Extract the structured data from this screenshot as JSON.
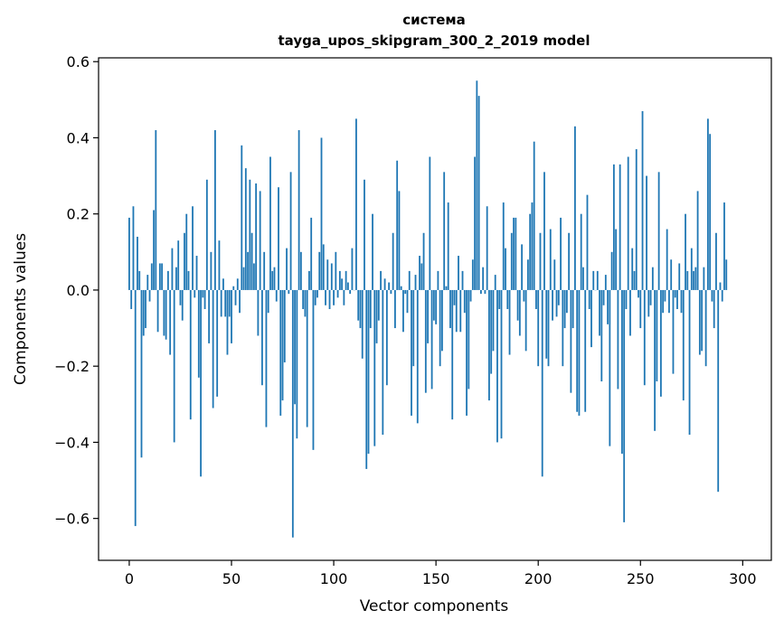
{
  "chart_data": {
    "type": "bar",
    "title": "система",
    "subtitle": "tayga_upos_skipgram_300_2_2019 model",
    "xlabel": "Vector components",
    "ylabel": "Components values",
    "xlim": [
      -15,
      314
    ],
    "ylim": [
      -0.71,
      0.61
    ],
    "xticks": [
      0,
      50,
      100,
      150,
      200,
      250,
      300
    ],
    "yticks": [
      -0.6,
      -0.4,
      -0.2,
      0.0,
      0.2,
      0.4,
      0.6
    ],
    "xtick_labels": [
      "0",
      "50",
      "100",
      "150",
      "200",
      "250",
      "300"
    ],
    "ytick_labels": [
      "−0.6",
      "−0.4",
      "−0.2",
      "0.0",
      "0.2",
      "0.4",
      "0.6"
    ],
    "grid": false,
    "color": "#1f77b4",
    "values": [
      0.19,
      -0.05,
      0.22,
      -0.62,
      0.14,
      0.05,
      -0.44,
      -0.12,
      -0.1,
      0.04,
      -0.03,
      0.07,
      0.21,
      0.42,
      -0.11,
      0.07,
      0.07,
      -0.12,
      -0.13,
      0.05,
      -0.17,
      0.11,
      -0.4,
      0.06,
      0.13,
      -0.04,
      -0.08,
      0.15,
      0.2,
      0.05,
      -0.34,
      0.22,
      -0.02,
      0.09,
      -0.23,
      -0.49,
      -0.02,
      -0.05,
      0.29,
      -0.14,
      0.1,
      -0.31,
      0.42,
      -0.28,
      0.13,
      -0.07,
      0.03,
      -0.07,
      -0.17,
      -0.07,
      -0.14,
      0.01,
      -0.04,
      0.03,
      -0.06,
      0.38,
      0.06,
      0.32,
      0.1,
      0.29,
      0.15,
      0.07,
      0.28,
      -0.12,
      0.26,
      -0.25,
      0.1,
      -0.36,
      -0.06,
      0.35,
      0.05,
      0.06,
      -0.03,
      0.27,
      -0.33,
      -0.29,
      -0.19,
      0.11,
      -0.01,
      0.31,
      -0.65,
      -0.3,
      -0.39,
      0.42,
      0.1,
      -0.05,
      -0.07,
      -0.36,
      0.05,
      0.19,
      -0.42,
      -0.04,
      -0.02,
      0.1,
      0.4,
      0.12,
      -0.04,
      0.08,
      -0.05,
      0.07,
      -0.04,
      0.1,
      -0.02,
      0.05,
      0.03,
      -0.04,
      0.05,
      0.02,
      -0.01,
      0.11,
      0.0,
      0.45,
      -0.08,
      -0.1,
      -0.18,
      0.29,
      -0.47,
      -0.43,
      -0.1,
      0.2,
      -0.41,
      -0.14,
      -0.08,
      0.05,
      -0.38,
      0.03,
      -0.25,
      0.02,
      -0.01,
      0.15,
      -0.1,
      0.34,
      0.26,
      0.01,
      -0.11,
      -0.01,
      -0.06,
      0.05,
      -0.33,
      -0.2,
      0.04,
      -0.35,
      0.09,
      0.07,
      0.15,
      -0.27,
      -0.14,
      0.35,
      -0.26,
      -0.08,
      -0.09,
      0.05,
      -0.2,
      -0.16,
      0.31,
      0.01,
      0.23,
      -0.1,
      -0.34,
      -0.04,
      -0.11,
      0.09,
      -0.11,
      0.05,
      -0.06,
      -0.33,
      -0.26,
      -0.03,
      0.08,
      0.35,
      0.55,
      0.51,
      -0.01,
      0.06,
      -0.01,
      0.22,
      -0.29,
      -0.22,
      -0.16,
      0.04,
      -0.4,
      -0.05,
      -0.39,
      0.23,
      0.11,
      -0.05,
      -0.17,
      0.15,
      0.19,
      0.19,
      -0.08,
      -0.12,
      0.12,
      -0.03,
      -0.16,
      0.08,
      0.2,
      0.23,
      0.39,
      -0.05,
      -0.2,
      0.15,
      -0.49,
      0.31,
      -0.18,
      -0.2,
      0.16,
      -0.08,
      0.08,
      -0.07,
      -0.04,
      0.19,
      -0.2,
      -0.1,
      -0.06,
      0.15,
      -0.27,
      -0.1,
      0.43,
      -0.32,
      -0.33,
      0.2,
      0.06,
      -0.32,
      0.25,
      -0.05,
      -0.15,
      0.05,
      0.0,
      0.05,
      -0.12,
      -0.24,
      -0.04,
      0.04,
      -0.09,
      -0.41,
      0.1,
      0.33,
      0.16,
      -0.26,
      0.33,
      -0.43,
      -0.61,
      -0.05,
      0.35,
      -0.12,
      0.11,
      0.05,
      0.37,
      -0.02,
      -0.1,
      0.47,
      -0.25,
      0.3,
      -0.07,
      -0.04,
      0.06,
      -0.37,
      -0.24,
      0.31,
      -0.28,
      -0.06,
      -0.03,
      0.16,
      -0.06,
      0.08,
      -0.22,
      -0.02,
      -0.05,
      0.07,
      -0.06,
      -0.29,
      0.2,
      0.05,
      -0.38,
      0.11,
      0.05,
      0.06,
      0.26,
      -0.17,
      -0.16,
      0.06,
      -0.2,
      0.45,
      0.41,
      -0.03,
      -0.1,
      0.15,
      -0.53,
      0.02,
      -0.03,
      0.23,
      0.08
    ]
  }
}
